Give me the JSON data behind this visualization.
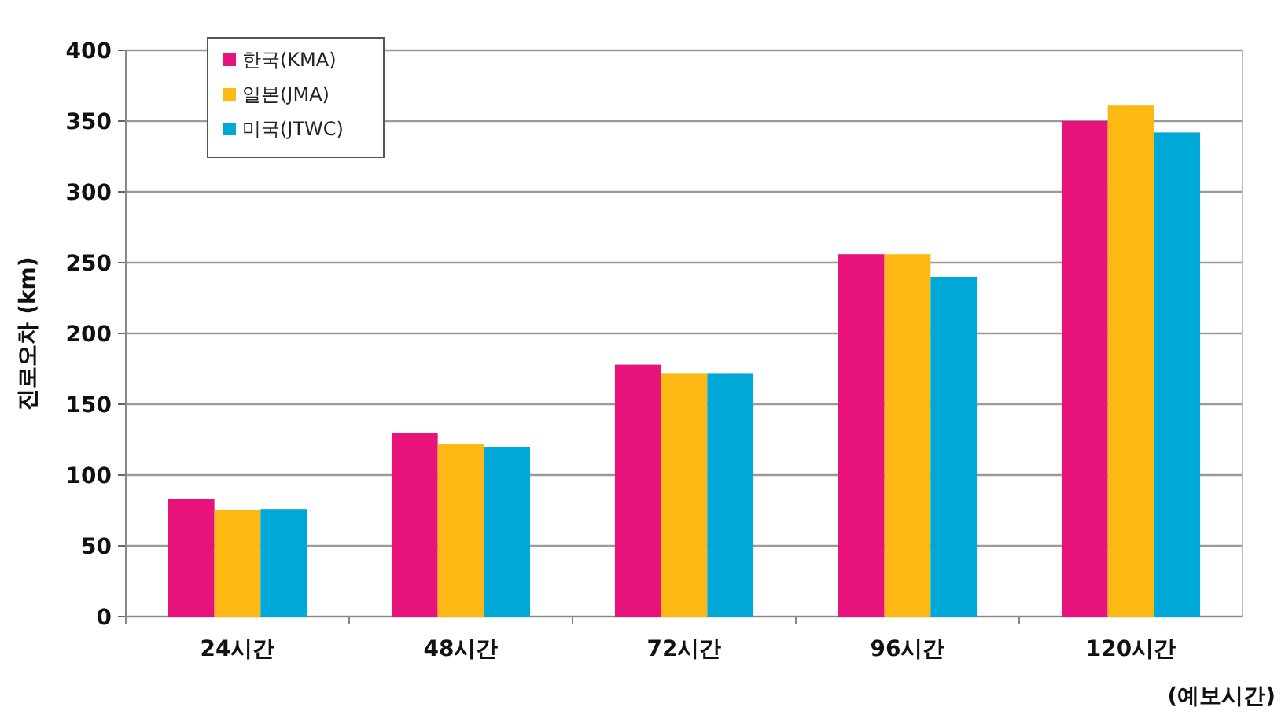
{
  "chart_data": {
    "type": "bar",
    "ylabel": "진로오차 (km)",
    "xlabel": "(예보시간)",
    "categories": [
      "24시간",
      "48시간",
      "72시간",
      "96시간",
      "120시간"
    ],
    "series": [
      {
        "name": "한국(KMA)",
        "color": "#e8137a",
        "values": [
          83,
          130,
          178,
          256,
          350
        ]
      },
      {
        "name": "일본(JMA)",
        "color": "#fdb813",
        "values": [
          75,
          122,
          172,
          256,
          361
        ]
      },
      {
        "name": "미국(JTWC)",
        "color": "#00a8d8",
        "values": [
          76,
          120,
          172,
          240,
          342
        ]
      }
    ],
    "ylim": [
      0,
      400
    ],
    "yticks": [
      0,
      50,
      100,
      150,
      200,
      250,
      300,
      350,
      400
    ],
    "grid": "y",
    "legend": "top left"
  }
}
